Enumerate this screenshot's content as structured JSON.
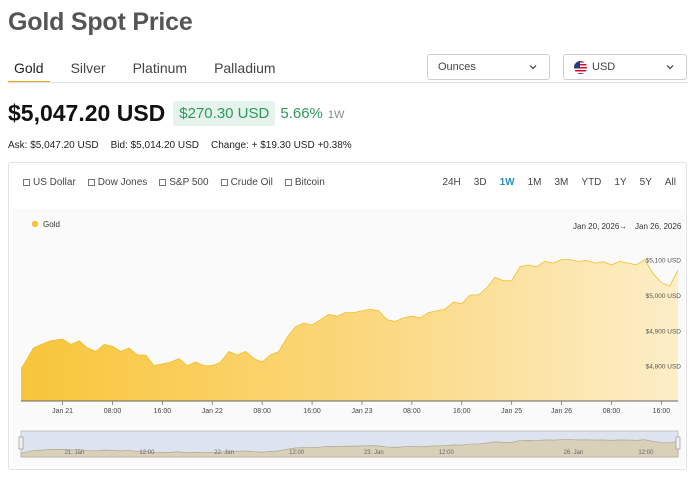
{
  "page": {
    "title": "Gold Spot Price"
  },
  "tabs": [
    {
      "label": "Gold",
      "active": true
    },
    {
      "label": "Silver",
      "active": false
    },
    {
      "label": "Platinum",
      "active": false
    },
    {
      "label": "Palladium",
      "active": false
    }
  ],
  "units_select": {
    "value": "Ounces"
  },
  "currency_select": {
    "value": "USD"
  },
  "price": {
    "value": "$5,047.20 USD",
    "change": "$270.30 USD",
    "change_pct": "5.66%",
    "period": "1W"
  },
  "quote": {
    "ask": "Ask: $5,047.20 USD",
    "bid": "Bid: $5,014.20 USD",
    "change": "Change: + $19.30 USD +0.38%"
  },
  "compare": [
    "US Dollar",
    "Dow Jones",
    "S&P 500",
    "Crude Oil",
    "Bitcoin"
  ],
  "ranges": [
    {
      "label": "24H",
      "active": false
    },
    {
      "label": "3D",
      "active": false
    },
    {
      "label": "1W",
      "active": true
    },
    {
      "label": "1M",
      "active": false
    },
    {
      "label": "3M",
      "active": false
    },
    {
      "label": "YTD",
      "active": false
    },
    {
      "label": "1Y",
      "active": false
    },
    {
      "label": "5Y",
      "active": false
    },
    {
      "label": "All",
      "active": false
    }
  ],
  "colors": {
    "accent": "#e6a817",
    "positive": "#2a9a5a",
    "active_range": "#2b8fb8",
    "series": "#f5c43c"
  },
  "chart_data": {
    "type": "area",
    "legend": [
      "Gold"
    ],
    "date_range": {
      "from": "Jan 20, 2026",
      "to": "Jan 26, 2026",
      "arrow": "→"
    },
    "y_ticks": [
      4800,
      4900,
      5000,
      5100
    ],
    "y_tick_labels": [
      "$4,800 USD",
      "$4,900 USD",
      "$5,000 USD",
      "$5,100 USD"
    ],
    "ylim": [
      4700,
      5130
    ],
    "x_ticks": [
      "Jan 21",
      "08:00",
      "16:00",
      "Jan 22",
      "08:00",
      "16:00",
      "Jan 23",
      "08:00",
      "16:00",
      "Jan 25",
      "Jan 26",
      "08:00",
      "16:00"
    ],
    "x_tick_positions": [
      0.0,
      0.12,
      0.24,
      0.36,
      0.48,
      0.6,
      0.72,
      0.84,
      0.96,
      1.08,
      1.2,
      1.32,
      1.44
    ],
    "navigator_ticks": [
      "21. Jan",
      "12:00",
      "22. Jan",
      "12:00",
      "23. Jan",
      "12:00",
      "26. Jan",
      "12:00"
    ],
    "series": [
      {
        "name": "Gold",
        "x": [
          -0.1,
          -0.07,
          -0.05,
          -0.03,
          0.0,
          0.02,
          0.04,
          0.06,
          0.08,
          0.1,
          0.12,
          0.14,
          0.16,
          0.18,
          0.2,
          0.22,
          0.24,
          0.26,
          0.28,
          0.3,
          0.32,
          0.34,
          0.36,
          0.38,
          0.4,
          0.42,
          0.44,
          0.46,
          0.48,
          0.5,
          0.52,
          0.54,
          0.56,
          0.58,
          0.6,
          0.62,
          0.64,
          0.66,
          0.68,
          0.7,
          0.72,
          0.74,
          0.76,
          0.78,
          0.8,
          0.82,
          0.84,
          0.86,
          0.88,
          0.9,
          0.92,
          0.94,
          0.96,
          0.98,
          1.0,
          1.02,
          1.04,
          1.06,
          1.08,
          1.1,
          1.12,
          1.14,
          1.16,
          1.18,
          1.2,
          1.22,
          1.24,
          1.26,
          1.28,
          1.3,
          1.32,
          1.34,
          1.36,
          1.38,
          1.4,
          1.42,
          1.44,
          1.46,
          1.48
        ],
        "values": [
          4790,
          4850,
          4860,
          4870,
          4875,
          4860,
          4870,
          4850,
          4840,
          4860,
          4855,
          4840,
          4850,
          4830,
          4830,
          4800,
          4805,
          4810,
          4820,
          4800,
          4810,
          4800,
          4800,
          4810,
          4840,
          4830,
          4840,
          4820,
          4810,
          4830,
          4840,
          4880,
          4910,
          4920,
          4915,
          4930,
          4945,
          4940,
          4950,
          4950,
          4955,
          4960,
          4955,
          4930,
          4925,
          4935,
          4940,
          4935,
          4950,
          4955,
          4960,
          4980,
          4975,
          5000,
          5000,
          5020,
          5050,
          5040,
          5040,
          5080,
          5085,
          5080,
          5095,
          5090,
          5100,
          5100,
          5095,
          5098,
          5090,
          5094,
          5085,
          5095,
          5090,
          5085,
          5100,
          5060,
          5035,
          5025,
          5070
        ]
      }
    ]
  }
}
